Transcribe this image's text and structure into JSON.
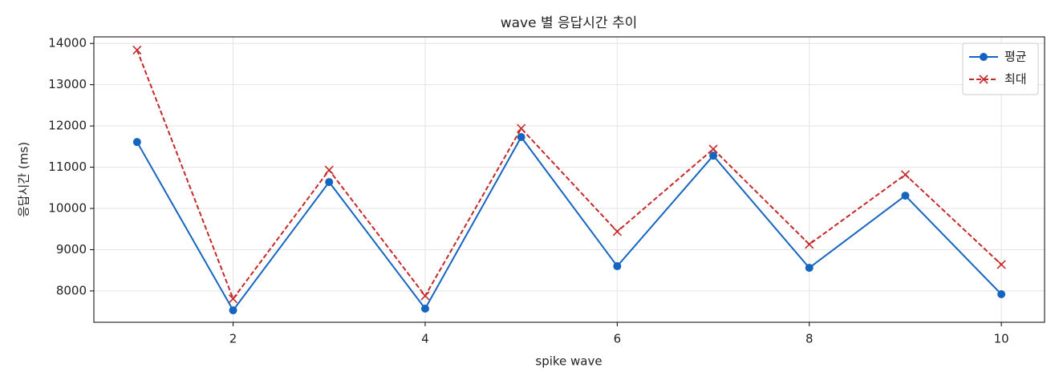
{
  "chart_data": {
    "type": "line",
    "title": "wave 별 응답시간 추이",
    "xlabel": "spike wave",
    "ylabel": "응답시간 (ms)",
    "x": [
      1,
      2,
      3,
      4,
      5,
      6,
      7,
      8,
      9,
      10
    ],
    "series": [
      {
        "name": "평균",
        "color": "#1565c0",
        "marker": "o",
        "linestyle": "solid",
        "values": [
          11610,
          7530,
          10640,
          7570,
          11730,
          8600,
          11280,
          8560,
          10310,
          7920
        ]
      },
      {
        "name": "최대",
        "color": "#c62828",
        "marker": "x",
        "linestyle": "dashed",
        "values": [
          13840,
          7810,
          10930,
          7880,
          11940,
          9440,
          11440,
          9130,
          10820,
          8640
        ]
      }
    ],
    "xlim": [
      0.55,
      10.45
    ],
    "ylim": [
      7240,
      14160
    ],
    "xticks": [
      2,
      4,
      6,
      8,
      10
    ],
    "yticks": [
      8000,
      9000,
      10000,
      11000,
      12000,
      13000,
      14000
    ],
    "grid": true,
    "legend": "upper right"
  }
}
